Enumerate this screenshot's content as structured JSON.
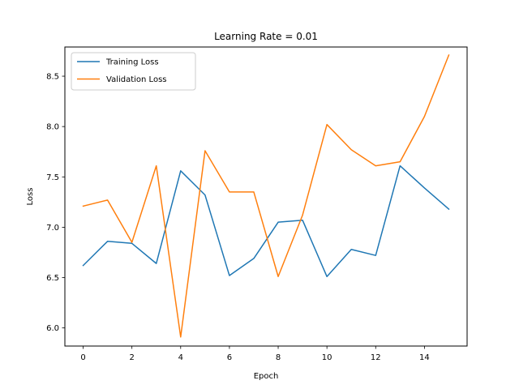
{
  "chart_data": {
    "type": "line",
    "title": "Learning Rate = 0.01",
    "xlabel": "Epoch",
    "ylabel": "Loss",
    "x": [
      0,
      1,
      2,
      3,
      4,
      5,
      6,
      7,
      8,
      9,
      10,
      11,
      12,
      13,
      14,
      15
    ],
    "xlim": [
      -0.75,
      15.75
    ],
    "ylim": [
      5.82,
      8.79
    ],
    "xticks": [
      0,
      2,
      4,
      6,
      8,
      10,
      12,
      14
    ],
    "xtick_labels": [
      "0",
      "2",
      "4",
      "6",
      "8",
      "10",
      "12",
      "14"
    ],
    "yticks": [
      6.0,
      6.5,
      7.0,
      7.5,
      8.0,
      8.5
    ],
    "ytick_labels": [
      "6.0",
      "6.5",
      "7.0",
      "7.5",
      "8.0",
      "8.5"
    ],
    "grid": false,
    "legend_position": "upper-left",
    "series": [
      {
        "name": "Training Loss",
        "color": "#1f77b4",
        "values": [
          6.62,
          6.86,
          6.84,
          6.64,
          7.56,
          7.32,
          6.52,
          6.69,
          7.05,
          7.07,
          6.51,
          6.78,
          6.72,
          7.61,
          7.39,
          7.18
        ]
      },
      {
        "name": "Validation Loss",
        "color": "#ff7f0e",
        "values": [
          7.21,
          7.27,
          6.85,
          7.61,
          5.91,
          7.76,
          7.35,
          7.35,
          6.51,
          7.12,
          8.02,
          7.77,
          7.61,
          7.65,
          8.1,
          8.71
        ]
      }
    ]
  }
}
